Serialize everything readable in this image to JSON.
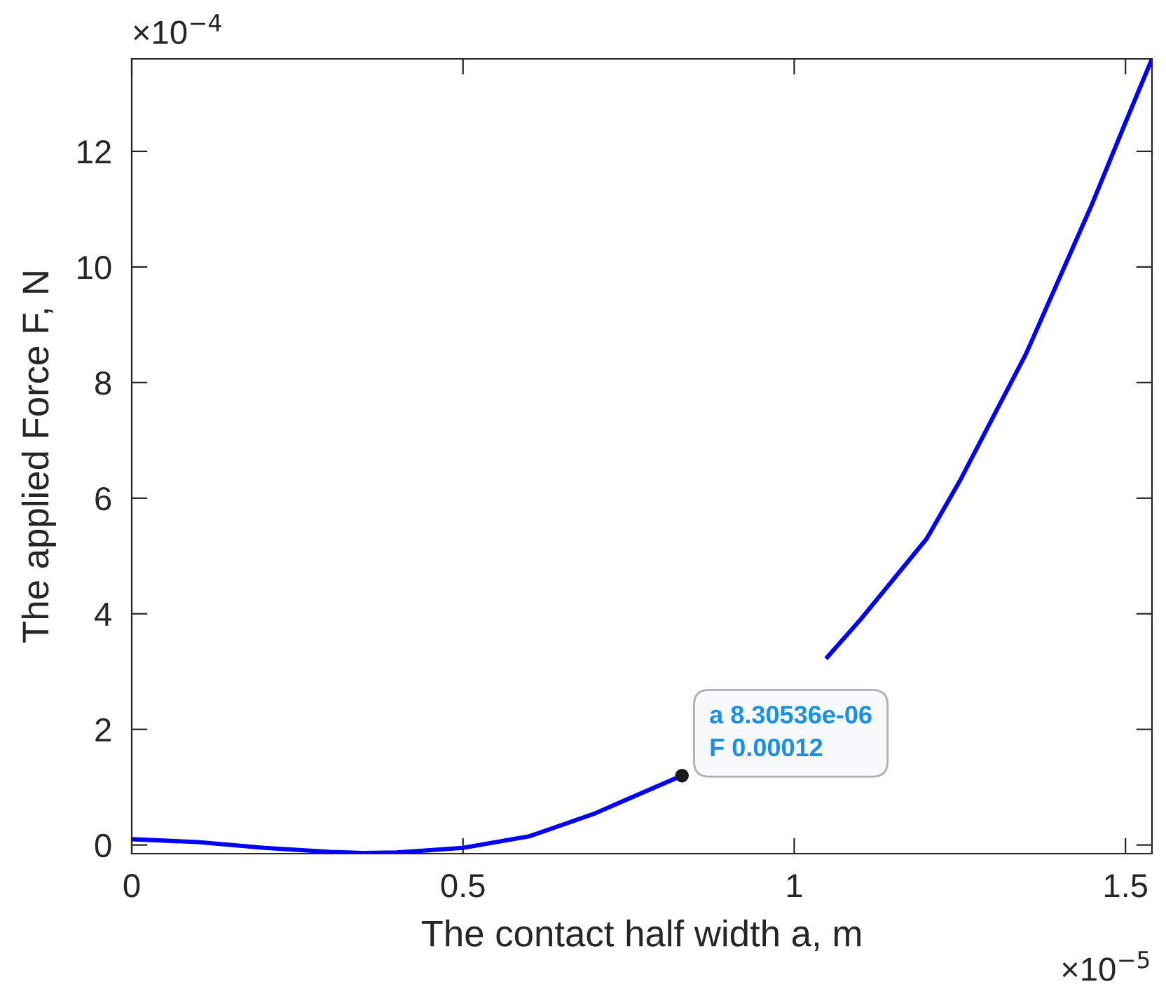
{
  "chart_data": {
    "type": "line",
    "xlabel": "The contact half width a, m",
    "ylabel": "The applied Force F, N",
    "x": [
      0,
      0.1,
      0.2,
      0.3,
      0.35,
      0.4,
      0.5,
      0.6,
      0.7,
      0.75,
      0.830536,
      0.9,
      0.95,
      1.0,
      1.05,
      1.1,
      1.15,
      1.2,
      1.25,
      1.3,
      1.35,
      1.4,
      1.45,
      1.5,
      1.54
    ],
    "series": [
      {
        "color": "#0000ff",
        "values": [
          0.1,
          0.05,
          -0.05,
          -0.12,
          -0.14,
          -0.13,
          -0.05,
          0.15,
          0.55,
          0.8,
          1.2,
          null,
          null,
          null,
          3.25,
          3.9,
          4.6,
          5.3,
          6.3,
          7.4,
          8.5,
          9.8,
          11.1,
          12.5,
          13.6
        ]
      }
    ],
    "xlim": [
      0,
      1.54
    ],
    "ylim": [
      -0.15,
      13.6
    ],
    "xticks": [
      0,
      0.5,
      1,
      1.5
    ],
    "yticks": [
      0,
      2,
      4,
      6,
      8,
      10,
      12
    ],
    "annotations": [
      "×10$^{−4}$",
      "×10$^{−5}$",
      {
        "text": "a 8.30536e-06\nF 0.00012",
        "x": 0.830536,
        "y": 1.2
      }
    ],
    "grid": false,
    "marker": "none",
    "line_style": "solid"
  }
}
